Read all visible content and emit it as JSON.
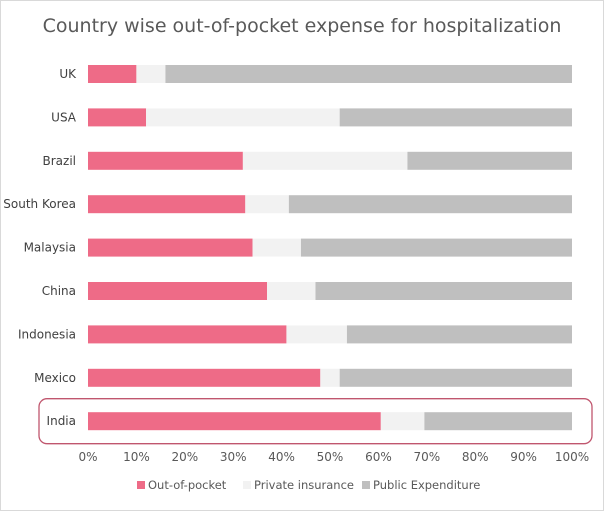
{
  "chart_data": {
    "type": "bar",
    "orientation": "horizontal",
    "stacked": "percent",
    "title": "Country wise out-of-pocket expense for hospitalization",
    "categories": [
      "UK",
      "USA",
      "Brazil",
      "South Korea",
      "Malaysia",
      "China",
      "Indonesia",
      "Mexico",
      "India"
    ],
    "series": [
      {
        "name": "Out-of-pocket",
        "color": "#ee6b87",
        "values": [
          10,
          12,
          32,
          32.5,
          34,
          37,
          41,
          48,
          60.5
        ]
      },
      {
        "name": "Private insurance",
        "color": "#f2f2f2",
        "values": [
          6,
          40,
          34,
          9,
          10,
          10,
          12.5,
          4,
          9
        ]
      },
      {
        "name": "Public Expenditure",
        "color": "#bfbfbf",
        "values": [
          84,
          48,
          34,
          58.5,
          56,
          53,
          46.5,
          48,
          30.5
        ]
      }
    ],
    "xticks": [
      "0%",
      "10%",
      "20%",
      "30%",
      "40%",
      "50%",
      "60%",
      "70%",
      "80%",
      "90%",
      "100%"
    ],
    "xlim": [
      0,
      100
    ],
    "highlighted_category": "India",
    "highlight_color": "#c0566e",
    "legend_position": "bottom"
  }
}
